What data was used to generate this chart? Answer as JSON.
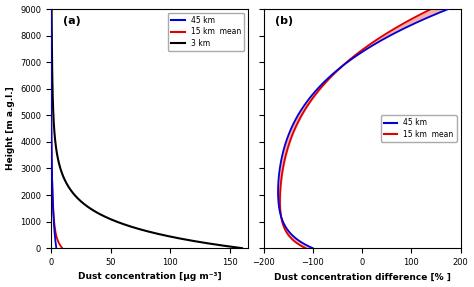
{
  "title_a": "(a)",
  "title_b": "(b)",
  "ylabel": "Height [m a.g.l.]",
  "xlabel_a": "Dust concentration [μg m⁻³]",
  "xlabel_b": "Dust concentration difference [% ]",
  "xlim_a": [
    0,
    165
  ],
  "xlim_b": [
    -200,
    200
  ],
  "ylim": [
    0,
    9000
  ],
  "yticks": [
    0,
    1000,
    2000,
    3000,
    4000,
    5000,
    6000,
    7000,
    8000,
    9000
  ],
  "xticks_a": [
    0,
    50,
    100,
    150
  ],
  "xticks_b": [
    -200,
    -100,
    0,
    100,
    200
  ],
  "color_45km": "#0000dd",
  "color_15km": "#dd0000",
  "color_3km": "#000000",
  "fill_color": "#f8a0a0",
  "legend_a": [
    "45 km",
    "15 km  mean",
    "3 km"
  ],
  "legend_b": [
    "45 km",
    "15 km  mean"
  ],
  "bg_color": "#ffffff"
}
